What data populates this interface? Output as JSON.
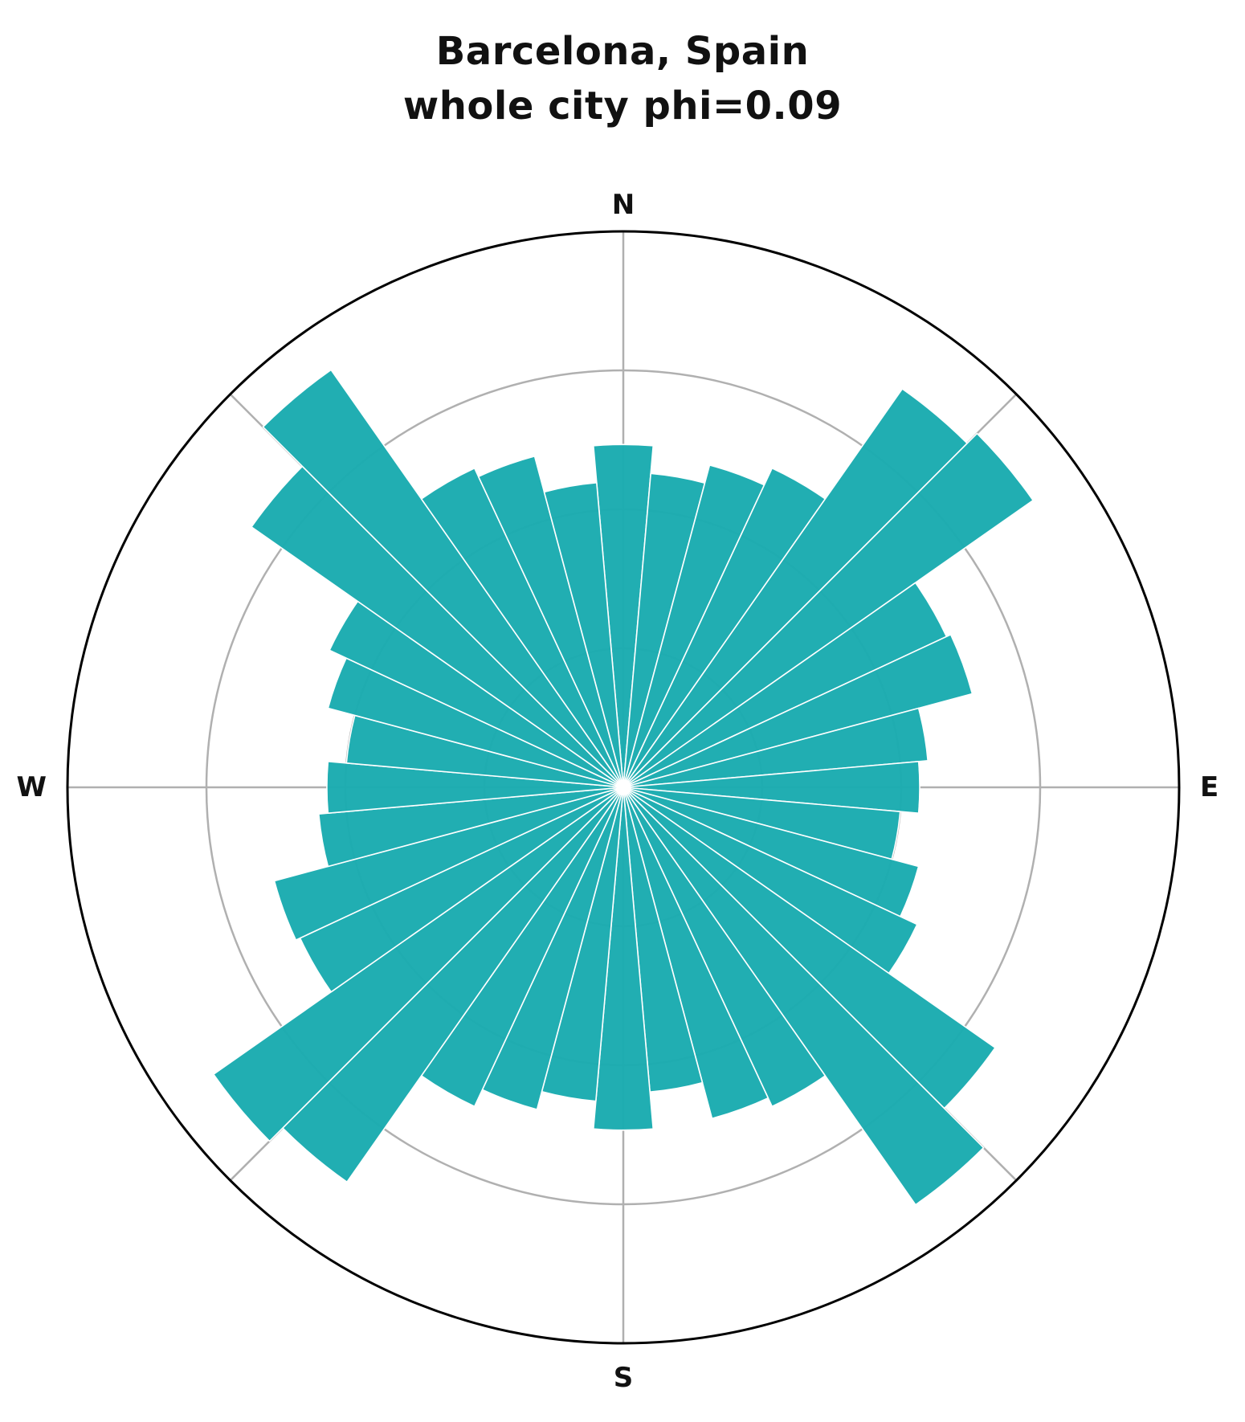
{
  "chart_data": {
    "type": "polar-bar",
    "title": "Barcelona, Spain",
    "subtitle": "whole city   phi=0.09",
    "bin_width_deg": 10,
    "direction_labels": [
      "N",
      "E",
      "S",
      "W"
    ],
    "bin_centers_deg": [
      0,
      10,
      20,
      30,
      40,
      50,
      60,
      70,
      80,
      90,
      100,
      110,
      120,
      130,
      140,
      150,
      160,
      170,
      180,
      190,
      200,
      210,
      220,
      230,
      240,
      250,
      260,
      270,
      280,
      290,
      300,
      310,
      320,
      330,
      340,
      350
    ],
    "values": [
      0.74,
      0.68,
      0.72,
      0.76,
      1.05,
      1.08,
      0.77,
      0.78,
      0.66,
      0.64,
      0.6,
      0.66,
      0.7,
      0.98,
      1.1,
      0.76,
      0.74,
      0.66,
      0.74,
      0.68,
      0.72,
      0.76,
      1.04,
      1.08,
      0.77,
      0.78,
      0.66,
      0.64,
      0.6,
      0.66,
      0.7,
      0.98,
      1.1,
      0.76,
      0.74,
      0.66
    ],
    "rmax": 1.2,
    "grid_rings": [
      0.3,
      0.6,
      0.9
    ],
    "grid": true,
    "bar_color": "#1aabaf"
  }
}
